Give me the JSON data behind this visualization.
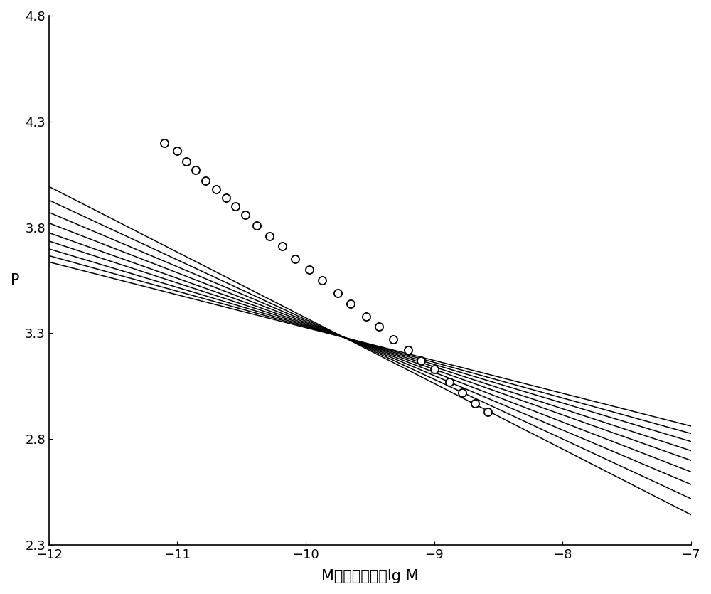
{
  "xlim": [
    -12,
    -7
  ],
  "ylim": [
    2.3,
    4.8
  ],
  "xticks": [
    -12,
    -11,
    -10,
    -9,
    -8,
    -7
  ],
  "yticks": [
    2.3,
    2.8,
    3.3,
    3.8,
    4.3,
    4.8
  ],
  "xlabel": "M的常用对数，lg M",
  "ylabel": "P",
  "xlabel_fontsize": 15,
  "ylabel_fontsize": 15,
  "tick_fontsize": 13,
  "line_color": "#000000",
  "scatter_color": "#000000",
  "scatter_markersize": 8,
  "scatter_linewidth": 1.3,
  "pivot_x": -9.7,
  "pivot_y": 3.28,
  "line_slopes": [
    -0.155,
    -0.168,
    -0.182,
    -0.198,
    -0.215,
    -0.235,
    -0.257,
    -0.282,
    -0.31
  ],
  "scatter_x": [
    -11.1,
    -11.0,
    -10.93,
    -10.86,
    -10.78,
    -10.7,
    -10.62,
    -10.55,
    -10.47,
    -10.38,
    -10.28,
    -10.18,
    -10.08,
    -9.97,
    -9.87,
    -9.75,
    -9.65,
    -9.53,
    -9.43,
    -9.32,
    -9.2,
    -9.1,
    -9.0,
    -8.88,
    -8.78,
    -8.68,
    -8.58
  ],
  "scatter_y": [
    4.2,
    4.16,
    4.11,
    4.07,
    4.02,
    3.98,
    3.94,
    3.9,
    3.86,
    3.81,
    3.76,
    3.71,
    3.65,
    3.6,
    3.55,
    3.49,
    3.44,
    3.38,
    3.33,
    3.27,
    3.22,
    3.17,
    3.13,
    3.07,
    3.02,
    2.97,
    2.93
  ],
  "background_color": "#ffffff",
  "figsize": [
    10.0,
    8.35
  ]
}
